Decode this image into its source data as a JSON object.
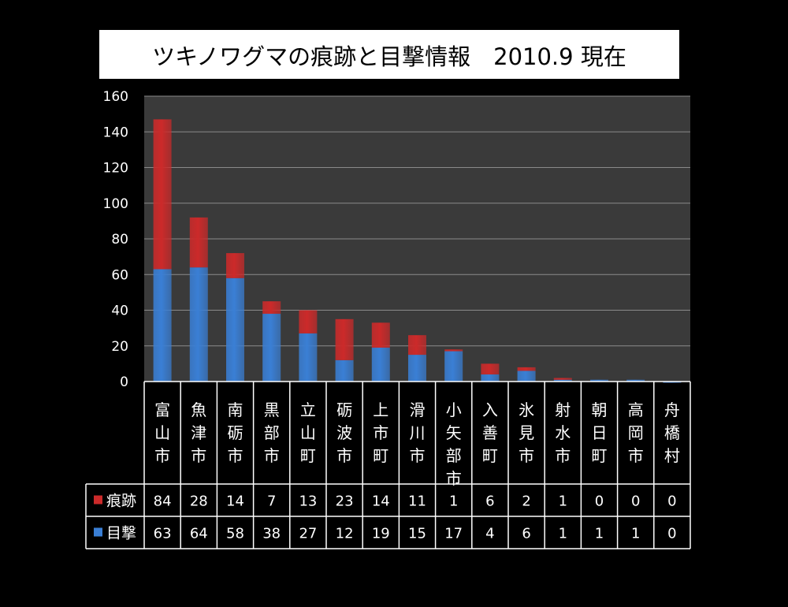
{
  "chart_data": {
    "type": "bar",
    "stacked": true,
    "title": "ツキノワグマの痕跡と目撃情報　2010.9 現在",
    "categories": [
      "富山市",
      "魚津市",
      "南砺市",
      "黒部市",
      "立山町",
      "砺波市",
      "上市町",
      "滑川市",
      "小矢部市",
      "入善町",
      "氷見市",
      "射水市",
      "朝日町",
      "高岡市",
      "舟橋村"
    ],
    "series": [
      {
        "name": "目撃",
        "color": "#3a7fd5",
        "values": [
          63,
          64,
          58,
          38,
          27,
          12,
          19,
          15,
          17,
          4,
          6,
          1,
          1,
          1,
          0
        ]
      },
      {
        "name": "痕跡",
        "color": "#cc2a2a",
        "values": [
          84,
          28,
          14,
          7,
          13,
          23,
          14,
          11,
          1,
          6,
          2,
          1,
          0,
          0,
          0
        ]
      }
    ],
    "ylim": [
      0,
      160
    ],
    "yticks": [
      0,
      20,
      40,
      60,
      80,
      100,
      120,
      140,
      160
    ],
    "grid": true,
    "legend": "data-table",
    "table_rows": [
      "痕跡",
      "目撃"
    ]
  }
}
